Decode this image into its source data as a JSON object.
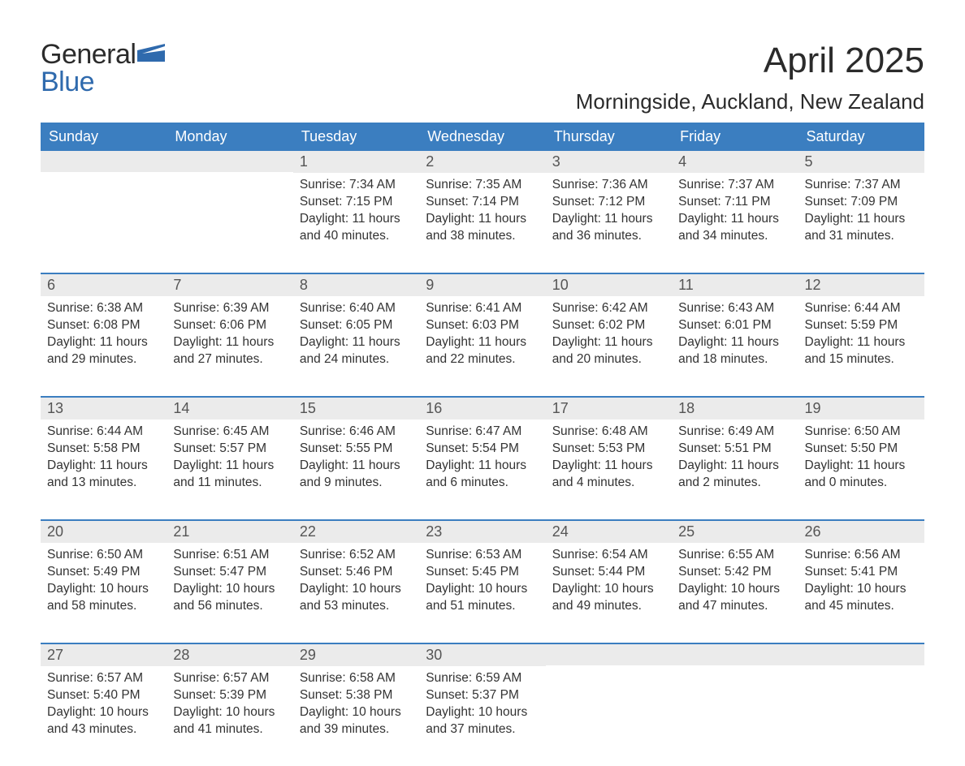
{
  "logo": {
    "word1": "General",
    "word2": "Blue",
    "flag_color": "#2f6aad"
  },
  "title": "April 2025",
  "location": "Morningside, Auckland, New Zealand",
  "colors": {
    "header_bg": "#3b7ec0",
    "header_text": "#ffffff",
    "daybar_bg": "#ebebeb",
    "week_divider": "#3b7ec0",
    "body_text": "#333333"
  },
  "day_headers": [
    "Sunday",
    "Monday",
    "Tuesday",
    "Wednesday",
    "Thursday",
    "Friday",
    "Saturday"
  ],
  "weeks": [
    [
      {
        "blank": true
      },
      {
        "blank": true
      },
      {
        "num": "1",
        "sunrise": "Sunrise: 7:34 AM",
        "sunset": "Sunset: 7:15 PM",
        "daylight": "Daylight: 11 hours and 40 minutes."
      },
      {
        "num": "2",
        "sunrise": "Sunrise: 7:35 AM",
        "sunset": "Sunset: 7:14 PM",
        "daylight": "Daylight: 11 hours and 38 minutes."
      },
      {
        "num": "3",
        "sunrise": "Sunrise: 7:36 AM",
        "sunset": "Sunset: 7:12 PM",
        "daylight": "Daylight: 11 hours and 36 minutes."
      },
      {
        "num": "4",
        "sunrise": "Sunrise: 7:37 AM",
        "sunset": "Sunset: 7:11 PM",
        "daylight": "Daylight: 11 hours and 34 minutes."
      },
      {
        "num": "5",
        "sunrise": "Sunrise: 7:37 AM",
        "sunset": "Sunset: 7:09 PM",
        "daylight": "Daylight: 11 hours and 31 minutes."
      }
    ],
    [
      {
        "num": "6",
        "sunrise": "Sunrise: 6:38 AM",
        "sunset": "Sunset: 6:08 PM",
        "daylight": "Daylight: 11 hours and 29 minutes."
      },
      {
        "num": "7",
        "sunrise": "Sunrise: 6:39 AM",
        "sunset": "Sunset: 6:06 PM",
        "daylight": "Daylight: 11 hours and 27 minutes."
      },
      {
        "num": "8",
        "sunrise": "Sunrise: 6:40 AM",
        "sunset": "Sunset: 6:05 PM",
        "daylight": "Daylight: 11 hours and 24 minutes."
      },
      {
        "num": "9",
        "sunrise": "Sunrise: 6:41 AM",
        "sunset": "Sunset: 6:03 PM",
        "daylight": "Daylight: 11 hours and 22 minutes."
      },
      {
        "num": "10",
        "sunrise": "Sunrise: 6:42 AM",
        "sunset": "Sunset: 6:02 PM",
        "daylight": "Daylight: 11 hours and 20 minutes."
      },
      {
        "num": "11",
        "sunrise": "Sunrise: 6:43 AM",
        "sunset": "Sunset: 6:01 PM",
        "daylight": "Daylight: 11 hours and 18 minutes."
      },
      {
        "num": "12",
        "sunrise": "Sunrise: 6:44 AM",
        "sunset": "Sunset: 5:59 PM",
        "daylight": "Daylight: 11 hours and 15 minutes."
      }
    ],
    [
      {
        "num": "13",
        "sunrise": "Sunrise: 6:44 AM",
        "sunset": "Sunset: 5:58 PM",
        "daylight": "Daylight: 11 hours and 13 minutes."
      },
      {
        "num": "14",
        "sunrise": "Sunrise: 6:45 AM",
        "sunset": "Sunset: 5:57 PM",
        "daylight": "Daylight: 11 hours and 11 minutes."
      },
      {
        "num": "15",
        "sunrise": "Sunrise: 6:46 AM",
        "sunset": "Sunset: 5:55 PM",
        "daylight": "Daylight: 11 hours and 9 minutes."
      },
      {
        "num": "16",
        "sunrise": "Sunrise: 6:47 AM",
        "sunset": "Sunset: 5:54 PM",
        "daylight": "Daylight: 11 hours and 6 minutes."
      },
      {
        "num": "17",
        "sunrise": "Sunrise: 6:48 AM",
        "sunset": "Sunset: 5:53 PM",
        "daylight": "Daylight: 11 hours and 4 minutes."
      },
      {
        "num": "18",
        "sunrise": "Sunrise: 6:49 AM",
        "sunset": "Sunset: 5:51 PM",
        "daylight": "Daylight: 11 hours and 2 minutes."
      },
      {
        "num": "19",
        "sunrise": "Sunrise: 6:50 AM",
        "sunset": "Sunset: 5:50 PM",
        "daylight": "Daylight: 11 hours and 0 minutes."
      }
    ],
    [
      {
        "num": "20",
        "sunrise": "Sunrise: 6:50 AM",
        "sunset": "Sunset: 5:49 PM",
        "daylight": "Daylight: 10 hours and 58 minutes."
      },
      {
        "num": "21",
        "sunrise": "Sunrise: 6:51 AM",
        "sunset": "Sunset: 5:47 PM",
        "daylight": "Daylight: 10 hours and 56 minutes."
      },
      {
        "num": "22",
        "sunrise": "Sunrise: 6:52 AM",
        "sunset": "Sunset: 5:46 PM",
        "daylight": "Daylight: 10 hours and 53 minutes."
      },
      {
        "num": "23",
        "sunrise": "Sunrise: 6:53 AM",
        "sunset": "Sunset: 5:45 PM",
        "daylight": "Daylight: 10 hours and 51 minutes."
      },
      {
        "num": "24",
        "sunrise": "Sunrise: 6:54 AM",
        "sunset": "Sunset: 5:44 PM",
        "daylight": "Daylight: 10 hours and 49 minutes."
      },
      {
        "num": "25",
        "sunrise": "Sunrise: 6:55 AM",
        "sunset": "Sunset: 5:42 PM",
        "daylight": "Daylight: 10 hours and 47 minutes."
      },
      {
        "num": "26",
        "sunrise": "Sunrise: 6:56 AM",
        "sunset": "Sunset: 5:41 PM",
        "daylight": "Daylight: 10 hours and 45 minutes."
      }
    ],
    [
      {
        "num": "27",
        "sunrise": "Sunrise: 6:57 AM",
        "sunset": "Sunset: 5:40 PM",
        "daylight": "Daylight: 10 hours and 43 minutes."
      },
      {
        "num": "28",
        "sunrise": "Sunrise: 6:57 AM",
        "sunset": "Sunset: 5:39 PM",
        "daylight": "Daylight: 10 hours and 41 minutes."
      },
      {
        "num": "29",
        "sunrise": "Sunrise: 6:58 AM",
        "sunset": "Sunset: 5:38 PM",
        "daylight": "Daylight: 10 hours and 39 minutes."
      },
      {
        "num": "30",
        "sunrise": "Sunrise: 6:59 AM",
        "sunset": "Sunset: 5:37 PM",
        "daylight": "Daylight: 10 hours and 37 minutes."
      },
      {
        "blank": true
      },
      {
        "blank": true
      },
      {
        "blank": true
      }
    ]
  ]
}
